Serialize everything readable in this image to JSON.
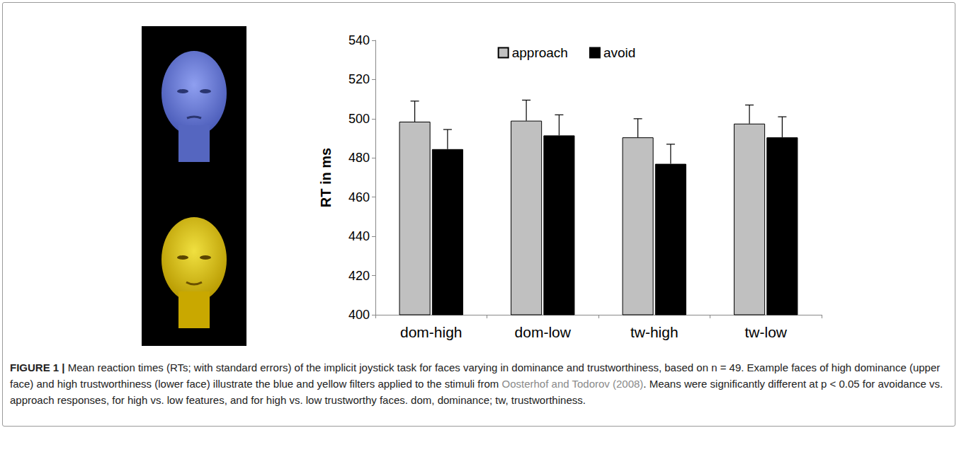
{
  "chart_data": {
    "type": "bar",
    "categories": [
      "dom-high",
      "dom-low",
      "tw-high",
      "tw-low"
    ],
    "series": [
      {
        "name": "approach",
        "color": "#c0c0c0",
        "values": [
          498.5,
          499,
          490.5,
          497.5
        ],
        "errors": [
          10.5,
          10.5,
          9.5,
          9.5
        ]
      },
      {
        "name": "avoid",
        "color": "#000000",
        "values": [
          484.5,
          491.5,
          477,
          490.5
        ],
        "errors": [
          10,
          10.5,
          10,
          10.5
        ]
      }
    ],
    "y_label": "RT in ms",
    "ylim": [
      400,
      540
    ],
    "yticks": [
      400,
      420,
      440,
      460,
      480,
      500,
      520,
      540
    ],
    "grid": false,
    "legend": "top"
  },
  "caption": {
    "label": "FIGURE 1 |",
    "text_before": " Mean reaction times (RTs; with standard errors) of the implicit joystick task for faces varying in dominance and trustworthiness, based on n = 49. Example faces of high dominance (upper face) and high trustworthiness (lower face) illustrate the blue and yellow filters applied to the stimuli from ",
    "citation": "Oosterhof and Todorov (2008)",
    "text_after": ". Means were significantly different at p < 0.05 for avoidance vs. approach responses, for high vs. low features, and for high vs. low trustworthy faces. dom, dominance; tw, trustworthiness."
  }
}
